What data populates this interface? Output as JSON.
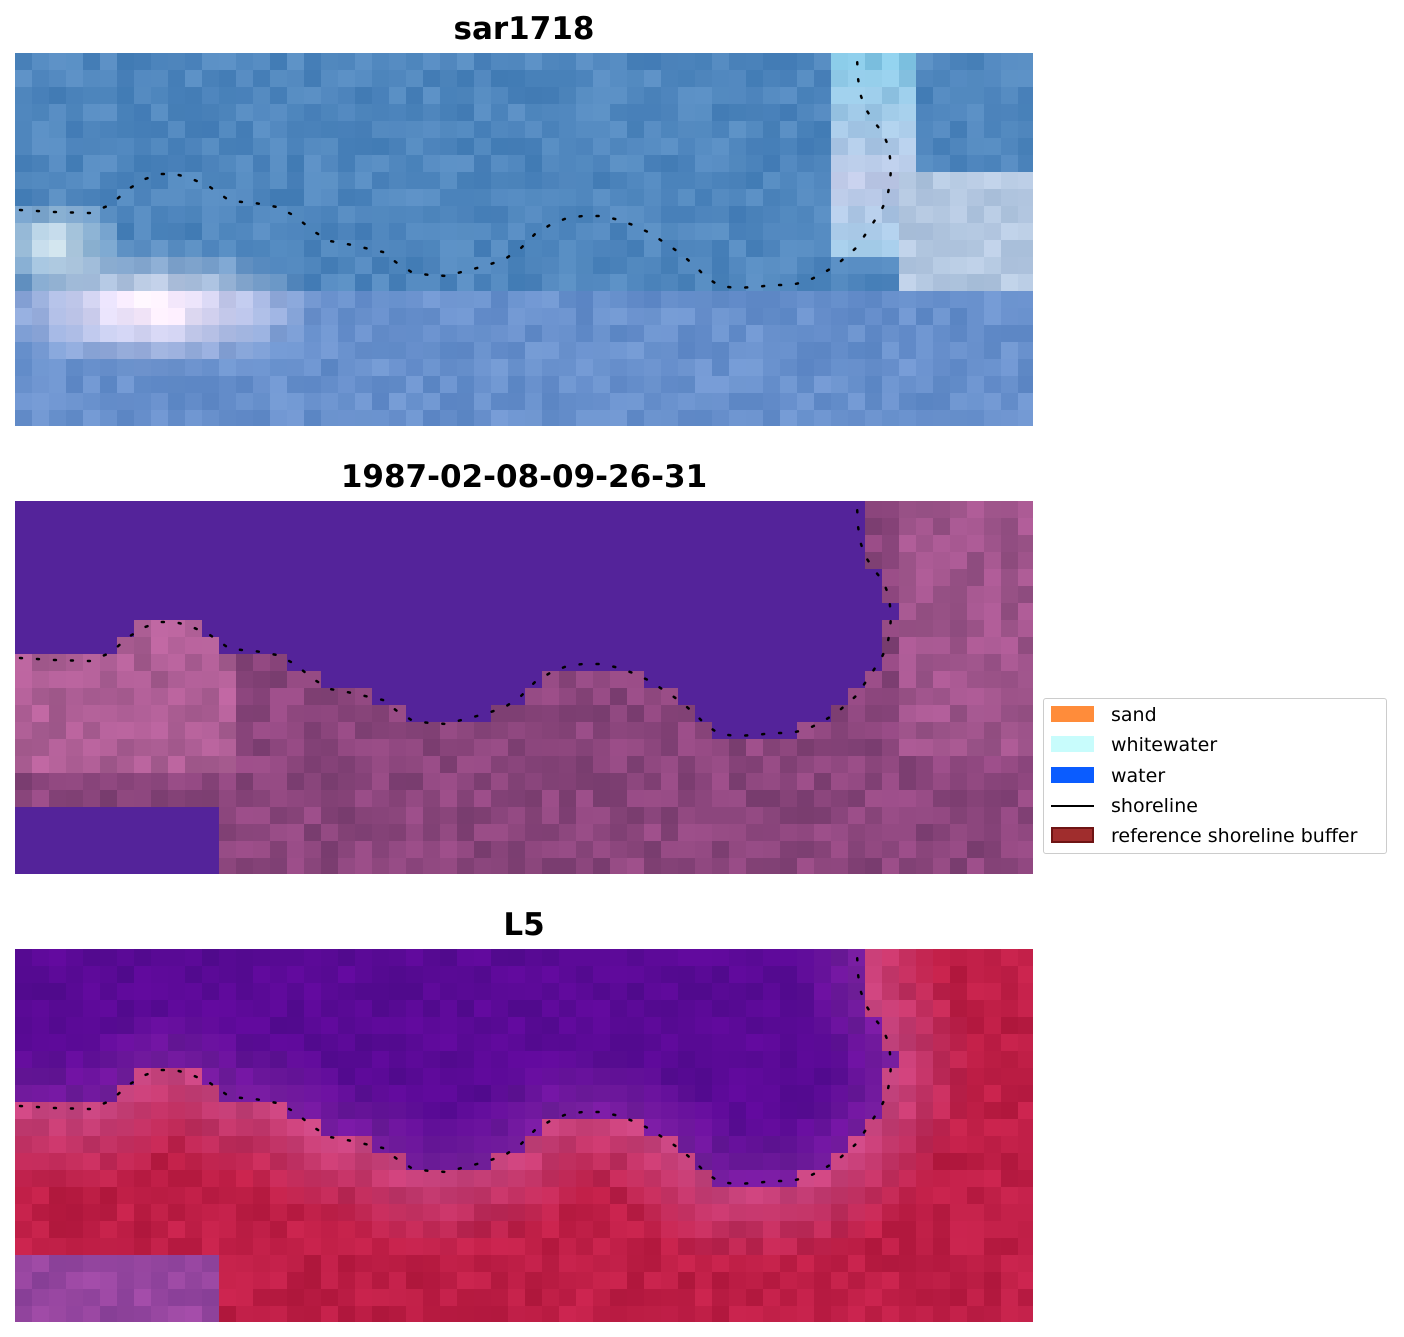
{
  "panels": [
    {
      "title": "sar1718",
      "style": "sar"
    },
    {
      "title": "1987-02-08-09-26-31",
      "style": "classified"
    },
    {
      "title": "L5",
      "style": "index"
    }
  ],
  "legend": {
    "items": [
      {
        "label": "sand",
        "kind": "patch",
        "color": "#ff8c3a"
      },
      {
        "label": "whitewater",
        "kind": "patch",
        "color": "#c8fcfc"
      },
      {
        "label": "water",
        "kind": "patch",
        "color": "#0a5cff"
      },
      {
        "label": "shoreline",
        "kind": "line",
        "color": "#000000"
      },
      {
        "label": "reference shoreline buffer",
        "kind": "patch",
        "color": "#a02d2d",
        "edge": "#6e1414"
      }
    ]
  },
  "colors": {
    "water_class": "#54239a",
    "shoreline_dots": "#000000"
  }
}
